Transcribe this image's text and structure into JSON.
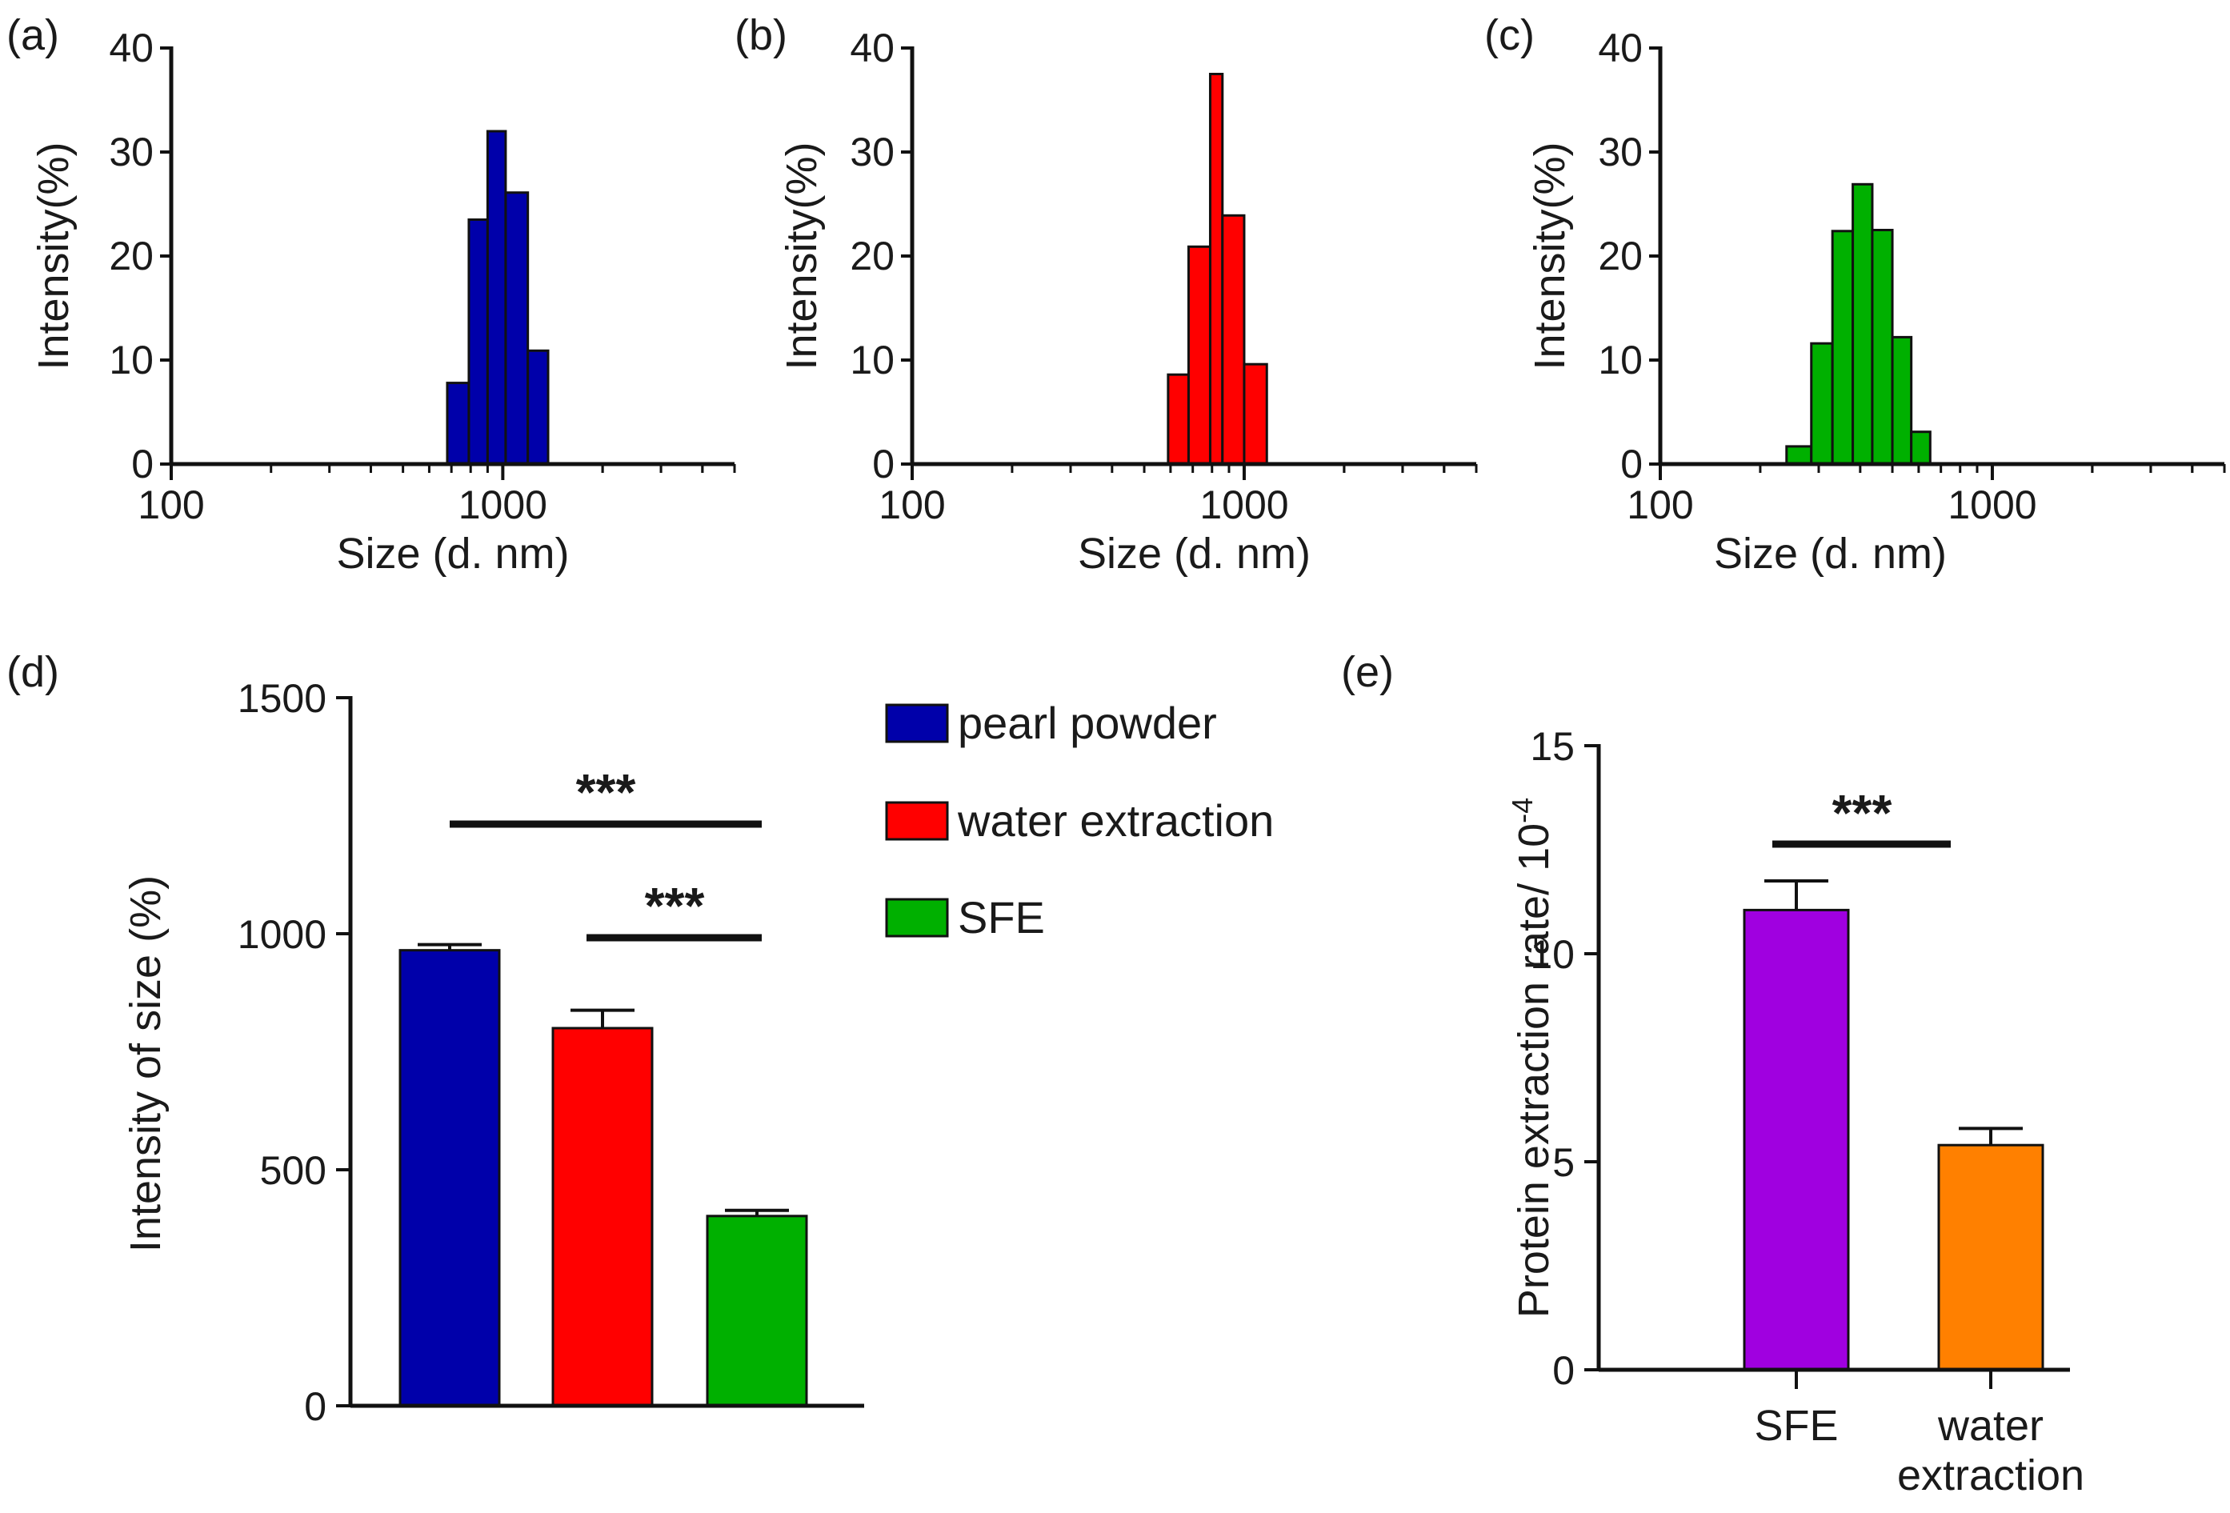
{
  "chart_data": [
    {
      "panel": "(a)",
      "type": "bar",
      "title": "",
      "xlabel": "Size (d. nm)",
      "ylabel": "Intensity(%)",
      "xscale": "log",
      "xlim": [
        100,
        5000
      ],
      "ylim": [
        0,
        40
      ],
      "xticks": [
        "100",
        "1000"
      ],
      "yticks": [
        "0",
        "10",
        "20",
        "30",
        "40"
      ],
      "color": "#0000AA",
      "bins": [
        {
          "from": 680,
          "to": 790,
          "value": 7.8
        },
        {
          "from": 790,
          "to": 900,
          "value": 23.5
        },
        {
          "from": 900,
          "to": 1020,
          "value": 32
        },
        {
          "from": 1020,
          "to": 1190,
          "value": 26.1
        },
        {
          "from": 1190,
          "to": 1370,
          "value": 10.9
        }
      ]
    },
    {
      "panel": "(b)",
      "type": "bar",
      "title": "",
      "xlabel": "Size (d. nm)",
      "ylabel": "Intensity(%)",
      "xscale": "log",
      "xlim": [
        100,
        5000
      ],
      "ylim": [
        0,
        40
      ],
      "xticks": [
        "100",
        "1000"
      ],
      "yticks": [
        "0",
        "10",
        "20",
        "30",
        "40"
      ],
      "color": "#FF0000",
      "bins": [
        {
          "from": 590,
          "to": 680,
          "value": 8.6
        },
        {
          "from": 680,
          "to": 790,
          "value": 20.9
        },
        {
          "from": 790,
          "to": 860,
          "value": 37.5
        },
        {
          "from": 860,
          "to": 1000,
          "value": 23.9
        },
        {
          "from": 1000,
          "to": 1170,
          "value": 9.6
        }
      ]
    },
    {
      "panel": "(c)",
      "type": "bar",
      "title": "",
      "xlabel": "Size (d. nm)",
      "ylabel": "Intensity(%)",
      "xscale": "log",
      "xlim": [
        100,
        5000
      ],
      "ylim": [
        0,
        40
      ],
      "xticks": [
        "100",
        "1000"
      ],
      "yticks": [
        "0",
        "10",
        "20",
        "30",
        "40"
      ],
      "color": "#00B000",
      "bins": [
        {
          "from": 240,
          "to": 285,
          "value": 1.7
        },
        {
          "from": 285,
          "to": 330,
          "value": 11.6
        },
        {
          "from": 330,
          "to": 380,
          "value": 22.4
        },
        {
          "from": 380,
          "to": 435,
          "value": 26.9
        },
        {
          "from": 435,
          "to": 500,
          "value": 22.5
        },
        {
          "from": 500,
          "to": 570,
          "value": 12.2
        },
        {
          "from": 570,
          "to": 650,
          "value": 3.1
        }
      ]
    },
    {
      "panel": "(d)",
      "type": "bar",
      "title": "",
      "xlabel": "",
      "ylabel": "Intensity of size (%)",
      "ylim": [
        0,
        1500
      ],
      "yticks": [
        "0",
        "500",
        "1000",
        "1500"
      ],
      "categories": [
        "pearl powder",
        "water extraction",
        "SFE"
      ],
      "values": [
        965,
        800,
        402
      ],
      "errors": [
        12,
        38,
        12
      ],
      "colors": [
        "#0000AA",
        "#FF0000",
        "#00B000"
      ],
      "legend": [
        "pearl powder",
        "water extraction",
        "SFE"
      ],
      "significance": [
        {
          "from": 0,
          "to": 2,
          "label": "***"
        },
        {
          "from": 1,
          "to": 2,
          "label": "***"
        }
      ]
    },
    {
      "panel": "(e)",
      "type": "bar",
      "title": "",
      "xlabel": "",
      "ylabel": "Protein extraction rate/ 10",
      "ylabel_sup": "-4",
      "ylim": [
        0,
        15
      ],
      "yticks": [
        "0",
        "5",
        "10",
        "15"
      ],
      "categories": [
        "SFE",
        "water extraction"
      ],
      "category_lines": [
        [
          "SFE"
        ],
        [
          "water",
          "extraction"
        ]
      ],
      "values": [
        11.05,
        5.4
      ],
      "errors": [
        0.7,
        0.4
      ],
      "colors": [
        "#A000E0",
        "#FF8000"
      ],
      "significance": [
        {
          "from": 0,
          "to": 1,
          "label": "***"
        }
      ]
    }
  ]
}
